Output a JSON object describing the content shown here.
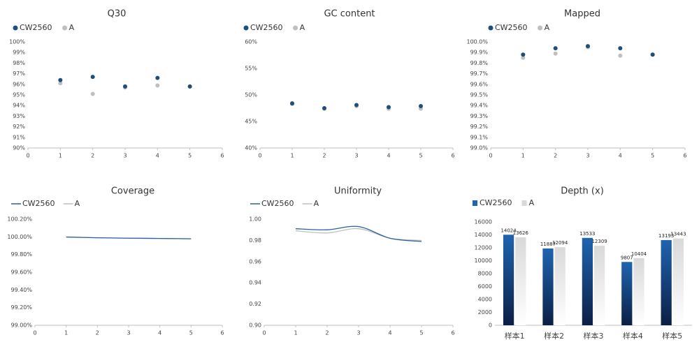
{
  "chart_data": [
    {
      "type": "scatter",
      "title": "Q30",
      "x": [
        1,
        2,
        3,
        4,
        5
      ],
      "series": [
        {
          "name": "CW2560",
          "color": "#1f4e79",
          "values": [
            96.4,
            96.7,
            95.8,
            96.6,
            95.8
          ]
        },
        {
          "name": "A",
          "color": "#bfbfbf",
          "values": [
            96.1,
            95.1,
            95.7,
            95.9,
            95.8
          ]
        }
      ],
      "xlim": [
        0,
        6
      ],
      "xticks": [
        0,
        1,
        2,
        3,
        4,
        5,
        6
      ],
      "ylim": [
        90,
        100
      ],
      "yticks": [
        {
          "value": 90,
          "label": "90%"
        },
        {
          "value": 91,
          "label": "91%"
        },
        {
          "value": 92,
          "label": "92%"
        },
        {
          "value": 93,
          "label": "93%"
        },
        {
          "value": 94,
          "label": "94%"
        },
        {
          "value": 95,
          "label": "95%"
        },
        {
          "value": 96,
          "label": "96%"
        },
        {
          "value": 97,
          "label": "97%"
        },
        {
          "value": 98,
          "label": "98%"
        },
        {
          "value": 99,
          "label": "99%"
        },
        {
          "value": 100,
          "label": "100%"
        }
      ]
    },
    {
      "type": "scatter",
      "title": "GC content",
      "x": [
        1,
        2,
        3,
        4,
        5
      ],
      "series": [
        {
          "name": "CW2560",
          "color": "#1f4e79",
          "values": [
            48.4,
            47.5,
            48.1,
            47.7,
            47.9
          ]
        },
        {
          "name": "A",
          "color": "#bfbfbf",
          "values": [
            48.3,
            47.4,
            47.9,
            47.4,
            47.4
          ]
        }
      ],
      "xlim": [
        0,
        6
      ],
      "xticks": [
        0,
        1,
        2,
        3,
        4,
        5,
        6
      ],
      "ylim": [
        40,
        60
      ],
      "yticks": [
        {
          "value": 40,
          "label": "40%"
        },
        {
          "value": 45,
          "label": "45%"
        },
        {
          "value": 50,
          "label": "50%"
        },
        {
          "value": 55,
          "label": "55%"
        },
        {
          "value": 60,
          "label": "60%"
        }
      ]
    },
    {
      "type": "scatter",
      "title": "Mapped",
      "x": [
        1,
        2,
        3,
        4,
        5
      ],
      "series": [
        {
          "name": "CW2560",
          "color": "#1f4e79",
          "values": [
            99.88,
            99.94,
            99.96,
            99.94,
            99.88
          ]
        },
        {
          "name": "A",
          "color": "#bfbfbf",
          "values": [
            99.85,
            99.89,
            99.95,
            99.87,
            99.88
          ]
        }
      ],
      "xlim": [
        0,
        6
      ],
      "xticks": [
        0,
        1,
        2,
        3,
        4,
        5,
        6
      ],
      "ylim": [
        99,
        100
      ],
      "yticks": [
        {
          "value": 99,
          "label": "99.0%"
        },
        {
          "value": 99.1,
          "label": "99.1%"
        },
        {
          "value": 99.2,
          "label": "99.2%"
        },
        {
          "value": 99.3,
          "label": "99.3%"
        },
        {
          "value": 99.4,
          "label": "99.4%"
        },
        {
          "value": 99.5,
          "label": "99.5%"
        },
        {
          "value": 99.6,
          "label": "99.6%"
        },
        {
          "value": 99.7,
          "label": "99.7%"
        },
        {
          "value": 99.8,
          "label": "99.8%"
        },
        {
          "value": 99.9,
          "label": "99.9%"
        },
        {
          "value": 100,
          "label": "100.0%"
        }
      ]
    },
    {
      "type": "line",
      "title": "Coverage",
      "x": [
        1,
        2,
        3,
        4,
        5
      ],
      "series": [
        {
          "name": "CW2560",
          "color": "#2e5f9e",
          "values": [
            99.998,
            99.99,
            99.985,
            99.982,
            99.978
          ]
        },
        {
          "name": "A",
          "color": "#bfbfbf",
          "values": [
            99.998,
            99.99,
            99.985,
            99.982,
            99.978
          ]
        }
      ],
      "xlim": [
        0,
        6
      ],
      "xticks": [
        0,
        1,
        2,
        3,
        4,
        5,
        6
      ],
      "ylim": [
        99,
        100.2
      ],
      "yticks": [
        {
          "value": 99,
          "label": "99.00%"
        },
        {
          "value": 99.2,
          "label": "99.20%"
        },
        {
          "value": 99.4,
          "label": "99.40%"
        },
        {
          "value": 99.6,
          "label": "99.60%"
        },
        {
          "value": 99.8,
          "label": "99.80%"
        },
        {
          "value": 100,
          "label": "100.00%"
        },
        {
          "value": 100.2,
          "label": "100.20%"
        }
      ]
    },
    {
      "type": "line",
      "title": "Uniformity",
      "x": [
        1,
        2,
        3,
        4,
        5
      ],
      "series": [
        {
          "name": "CW2560",
          "color": "#2e5f9e",
          "values": [
            0.991,
            0.99,
            0.993,
            0.982,
            0.979
          ]
        },
        {
          "name": "A",
          "color": "#bfbfbf",
          "values": [
            0.989,
            0.987,
            0.991,
            0.982,
            0.98
          ]
        }
      ],
      "xlim": [
        0,
        6
      ],
      "xticks": [
        0,
        1,
        2,
        3,
        4,
        5,
        6
      ],
      "ylim": [
        0.9,
        1.0
      ],
      "yticks": [
        {
          "value": 0.9,
          "label": "0.90"
        },
        {
          "value": 0.92,
          "label": "0.92"
        },
        {
          "value": 0.94,
          "label": "0.94"
        },
        {
          "value": 0.96,
          "label": "0.96"
        },
        {
          "value": 0.98,
          "label": "0.98"
        },
        {
          "value": 1.0,
          "label": "1.00"
        }
      ]
    },
    {
      "type": "bar",
      "title": "Depth (x)",
      "categories": [
        "样本1",
        "样本2",
        "样本3",
        "样本4",
        "样本5"
      ],
      "series": [
        {
          "name": "CW2560",
          "color": "#1f64b0",
          "values": [
            14024,
            11887,
            13533,
            9807,
            13193
          ]
        },
        {
          "name": "A",
          "color": "#d9d9d9",
          "values": [
            13626,
            12094,
            12309,
            10404,
            13443
          ]
        }
      ],
      "ylim": [
        0,
        16000
      ],
      "yticks": [
        0,
        2000,
        4000,
        6000,
        8000,
        10000,
        12000,
        14000,
        16000
      ]
    }
  ]
}
